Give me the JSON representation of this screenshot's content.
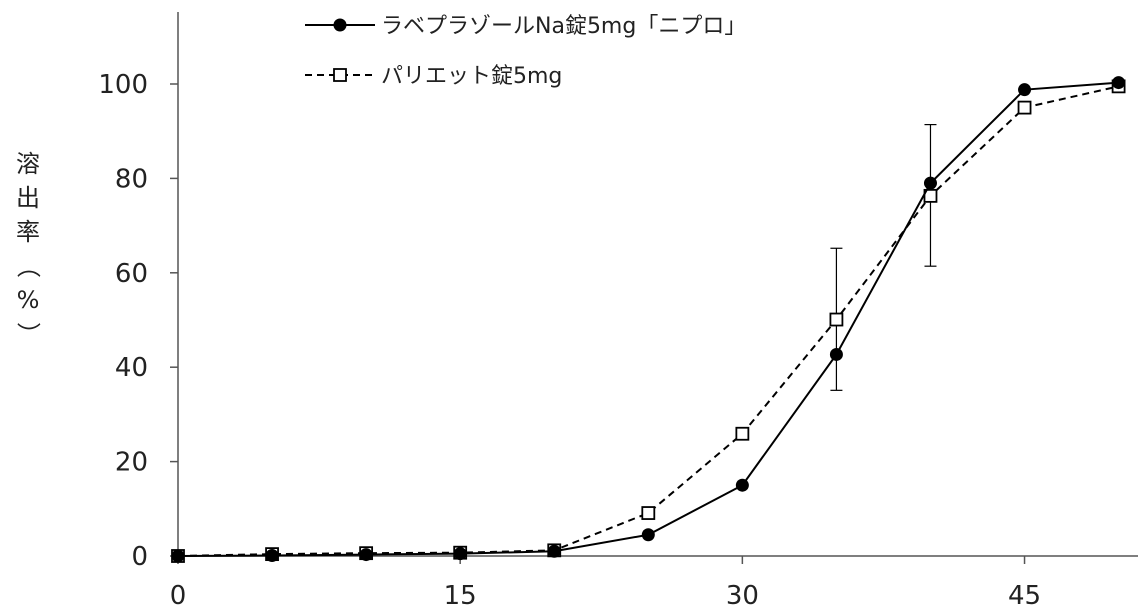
{
  "chart_data": {
    "type": "line",
    "title": "",
    "xlabel": "",
    "ylabel": "溶出率（%）",
    "ylabel_chars": [
      "溶",
      "出",
      "率",
      "（",
      "%",
      "）"
    ],
    "xlim": [
      0,
      50
    ],
    "ylim": [
      0,
      110
    ],
    "x_ticks": [
      0,
      15,
      30,
      45
    ],
    "y_ticks": [
      0,
      20,
      40,
      60,
      80,
      100
    ],
    "grid": false,
    "legend_position": "top-center",
    "series": [
      {
        "name": "ラベプラゾールNa錠5mg「ニプロ」",
        "marker": "filled-circle",
        "line_style": "solid",
        "color": "#000000",
        "x": [
          0,
          5,
          10,
          15,
          20,
          25,
          30,
          35,
          40,
          45,
          50
        ],
        "y": [
          0,
          0.1,
          0.3,
          0.5,
          1.0,
          4.5,
          15.0,
          42.7,
          79.0,
          98.8,
          100.3
        ],
        "error_bars": [
          {
            "x": 35,
            "low": 35.1,
            "high": 65.2
          },
          {
            "x": 40,
            "low": 61.4,
            "high": 91.4
          }
        ]
      },
      {
        "name": "パリエット錠5mg",
        "marker": "open-square",
        "line_style": "dashed",
        "color": "#000000",
        "x": [
          0,
          5,
          10,
          15,
          20,
          25,
          30,
          35,
          40,
          45,
          50
        ],
        "y": [
          0,
          0.4,
          0.6,
          0.7,
          1.2,
          9.1,
          25.9,
          50.1,
          76.3,
          95.0,
          99.5
        ]
      }
    ]
  }
}
